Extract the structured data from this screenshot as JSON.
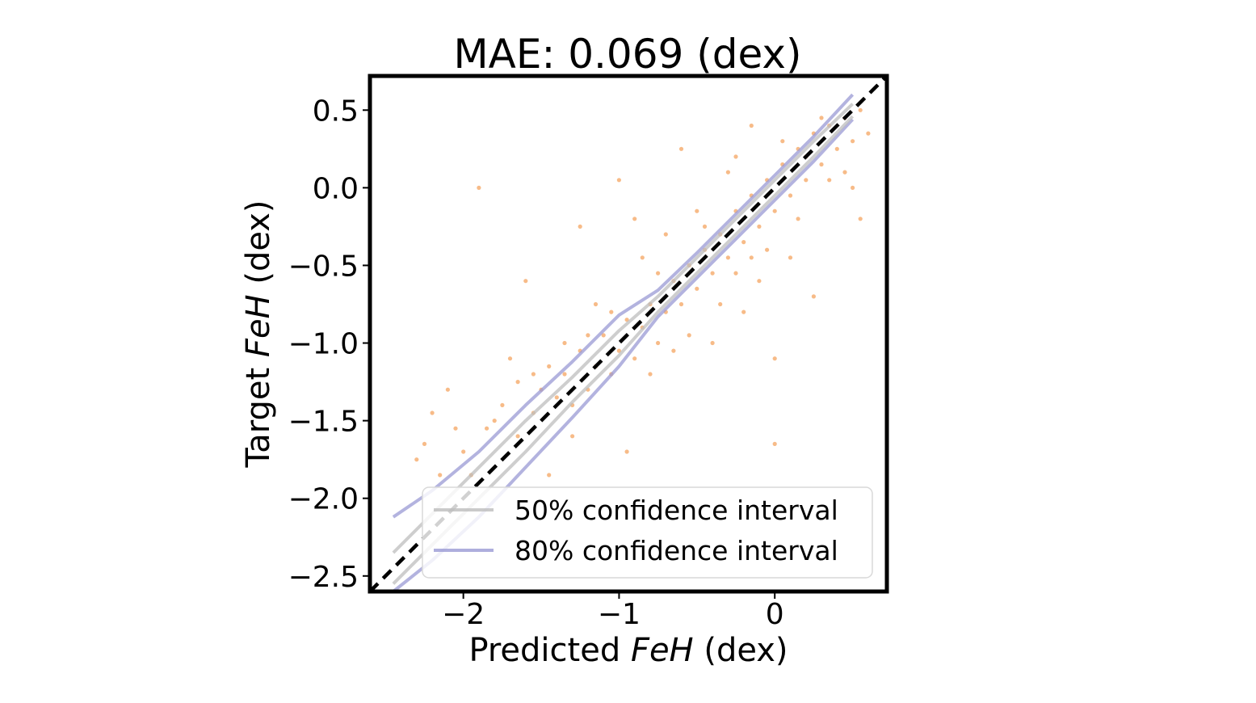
{
  "chart_data": {
    "type": "scatter",
    "title": "MAE: 0.069 (dex)",
    "xlabel": {
      "prefix": "Predicted ",
      "italic": "FeH",
      "suffix": " (dex)"
    },
    "ylabel": {
      "prefix": "Target ",
      "italic": "FeH",
      "suffix": " (dex)"
    },
    "xlim": [
      -2.6,
      0.72
    ],
    "ylim": [
      -2.6,
      0.72
    ],
    "xticks": [
      -2,
      -1,
      0
    ],
    "xtick_labels": [
      "−2",
      "−1",
      "0"
    ],
    "yticks": [
      -2.5,
      -2.0,
      -1.5,
      -1.0,
      -0.5,
      0.0,
      0.5
    ],
    "ytick_labels": [
      "−2.5",
      "−2.0",
      "−1.5",
      "−1.0",
      "−0.5",
      "0.0",
      "0.5"
    ],
    "grid": false,
    "legend": {
      "location": "lower-right",
      "entries": [
        {
          "label": "50% confidence interval",
          "color": "#bdbdbd"
        },
        {
          "label": "80% confidence interval",
          "color": "#9a9ad4"
        }
      ]
    },
    "identity_line": {
      "x": [
        -2.6,
        0.72
      ],
      "y": [
        -2.6,
        0.72
      ],
      "style": "dashed",
      "color": "#000000"
    },
    "scatter_color": "#f4a460",
    "ci_50": {
      "color": "#bdbdbd",
      "x": [
        -2.45,
        -2.2,
        -1.9,
        -1.6,
        -1.3,
        -1.0,
        -0.75,
        -0.5,
        -0.25,
        0.0,
        0.25,
        0.5
      ],
      "lower": [
        -2.55,
        -2.3,
        -2.0,
        -1.7,
        -1.38,
        -1.08,
        -0.8,
        -0.55,
        -0.3,
        -0.05,
        0.2,
        0.46
      ],
      "upper": [
        -2.35,
        -2.1,
        -1.8,
        -1.5,
        -1.22,
        -0.92,
        -0.7,
        -0.45,
        -0.2,
        0.05,
        0.3,
        0.54
      ]
    },
    "ci_80": {
      "color": "#9a9ad4",
      "x": [
        -2.45,
        -2.2,
        -1.9,
        -1.6,
        -1.3,
        -1.0,
        -0.75,
        -0.5,
        -0.25,
        0.0,
        0.25,
        0.5
      ],
      "lower": [
        -2.6,
        -2.4,
        -2.12,
        -1.8,
        -1.48,
        -1.15,
        -0.83,
        -0.58,
        -0.33,
        -0.08,
        0.17,
        0.44
      ],
      "upper": [
        -2.12,
        -1.95,
        -1.7,
        -1.4,
        -1.12,
        -0.82,
        -0.66,
        -0.42,
        -0.17,
        0.08,
        0.33,
        0.6
      ]
    },
    "series": [
      {
        "name": "predictions",
        "points": [
          [
            -2.3,
            -1.75
          ],
          [
            -2.25,
            -1.65
          ],
          [
            -2.2,
            -1.45
          ],
          [
            -2.15,
            -1.85
          ],
          [
            -2.05,
            -1.55
          ],
          [
            -1.95,
            -1.85
          ],
          [
            -1.85,
            -1.55
          ],
          [
            -1.75,
            -1.4
          ],
          [
            -1.7,
            -1.1
          ],
          [
            -1.65,
            -1.6
          ],
          [
            -1.55,
            -1.45
          ],
          [
            -1.5,
            -1.3
          ],
          [
            -1.45,
            -1.15
          ],
          [
            -1.4,
            -1.35
          ],
          [
            -1.35,
            -1.2
          ],
          [
            -1.3,
            -1.4
          ],
          [
            -1.25,
            -1.05
          ],
          [
            -1.2,
            -1.3
          ],
          [
            -1.15,
            -1.15
          ],
          [
            -1.1,
            -0.95
          ],
          [
            -1.05,
            -1.2
          ],
          [
            -1.0,
            -1.05
          ],
          [
            -0.95,
            -0.85
          ],
          [
            -0.9,
            -1.1
          ],
          [
            -0.85,
            -0.9
          ],
          [
            -0.8,
            -0.75
          ],
          [
            -0.75,
            -1.0
          ],
          [
            -0.7,
            -0.8
          ],
          [
            -0.65,
            -0.6
          ],
          [
            -0.6,
            -0.75
          ],
          [
            -0.55,
            -0.5
          ],
          [
            -0.5,
            -0.65
          ],
          [
            -0.45,
            -0.4
          ],
          [
            -0.4,
            -0.55
          ],
          [
            -0.35,
            -0.3
          ],
          [
            -0.3,
            -0.45
          ],
          [
            -0.25,
            -0.15
          ],
          [
            -0.2,
            -0.35
          ],
          [
            -0.15,
            -0.05
          ],
          [
            -0.1,
            -0.25
          ],
          [
            -0.05,
            0.05
          ],
          [
            0.0,
            -0.15
          ],
          [
            0.05,
            0.15
          ],
          [
            0.1,
            -0.05
          ],
          [
            0.15,
            0.25
          ],
          [
            0.2,
            0.05
          ],
          [
            0.25,
            0.35
          ],
          [
            0.3,
            0.15
          ],
          [
            0.35,
            0.4
          ],
          [
            0.4,
            0.25
          ],
          [
            0.45,
            0.45
          ],
          [
            0.5,
            0.3
          ],
          [
            0.55,
            0.5
          ],
          [
            0.6,
            0.35
          ],
          [
            -1.6,
            -0.6
          ],
          [
            -1.9,
            0.0
          ],
          [
            -1.25,
            -0.25
          ],
          [
            -1.0,
            0.05
          ],
          [
            -0.9,
            -0.2
          ],
          [
            -0.6,
            0.25
          ],
          [
            -0.3,
            0.1
          ],
          [
            -0.2,
            -0.8
          ],
          [
            0.0,
            -1.1
          ],
          [
            -0.1,
            -0.6
          ],
          [
            0.1,
            -0.45
          ],
          [
            -0.5,
            -0.15
          ],
          [
            -0.7,
            -0.3
          ],
          [
            0.55,
            -0.2
          ],
          [
            -0.95,
            -1.7
          ],
          [
            -1.3,
            -1.6
          ],
          [
            -1.45,
            -1.85
          ],
          [
            0.0,
            -1.65
          ],
          [
            -2.1,
            -1.3
          ],
          [
            -0.4,
            -1.0
          ],
          [
            0.25,
            -0.7
          ],
          [
            -0.15,
            0.4
          ],
          [
            0.3,
            0.45
          ],
          [
            -0.25,
            0.2
          ],
          [
            -0.55,
            -0.95
          ],
          [
            -0.85,
            -0.45
          ],
          [
            -1.15,
            -0.75
          ],
          [
            -0.35,
            -0.75
          ],
          [
            0.45,
            0.1
          ],
          [
            0.5,
            0.0
          ],
          [
            -0.05,
            -0.4
          ],
          [
            -0.65,
            -1.05
          ],
          [
            -0.45,
            -0.25
          ],
          [
            -0.15,
            -0.45
          ],
          [
            0.15,
            -0.2
          ],
          [
            0.2,
            0.2
          ],
          [
            0.35,
            0.05
          ],
          [
            -0.25,
            -0.55
          ],
          [
            0.05,
            0.3
          ],
          [
            -0.75,
            -0.55
          ],
          [
            -1.05,
            -0.8
          ],
          [
            -1.2,
            -0.95
          ],
          [
            -1.35,
            -1.0
          ],
          [
            -1.55,
            -1.2
          ],
          [
            -1.8,
            -1.5
          ],
          [
            -2.0,
            -1.7
          ],
          [
            -1.65,
            -1.25
          ],
          [
            -0.8,
            -1.2
          ]
        ]
      }
    ]
  }
}
